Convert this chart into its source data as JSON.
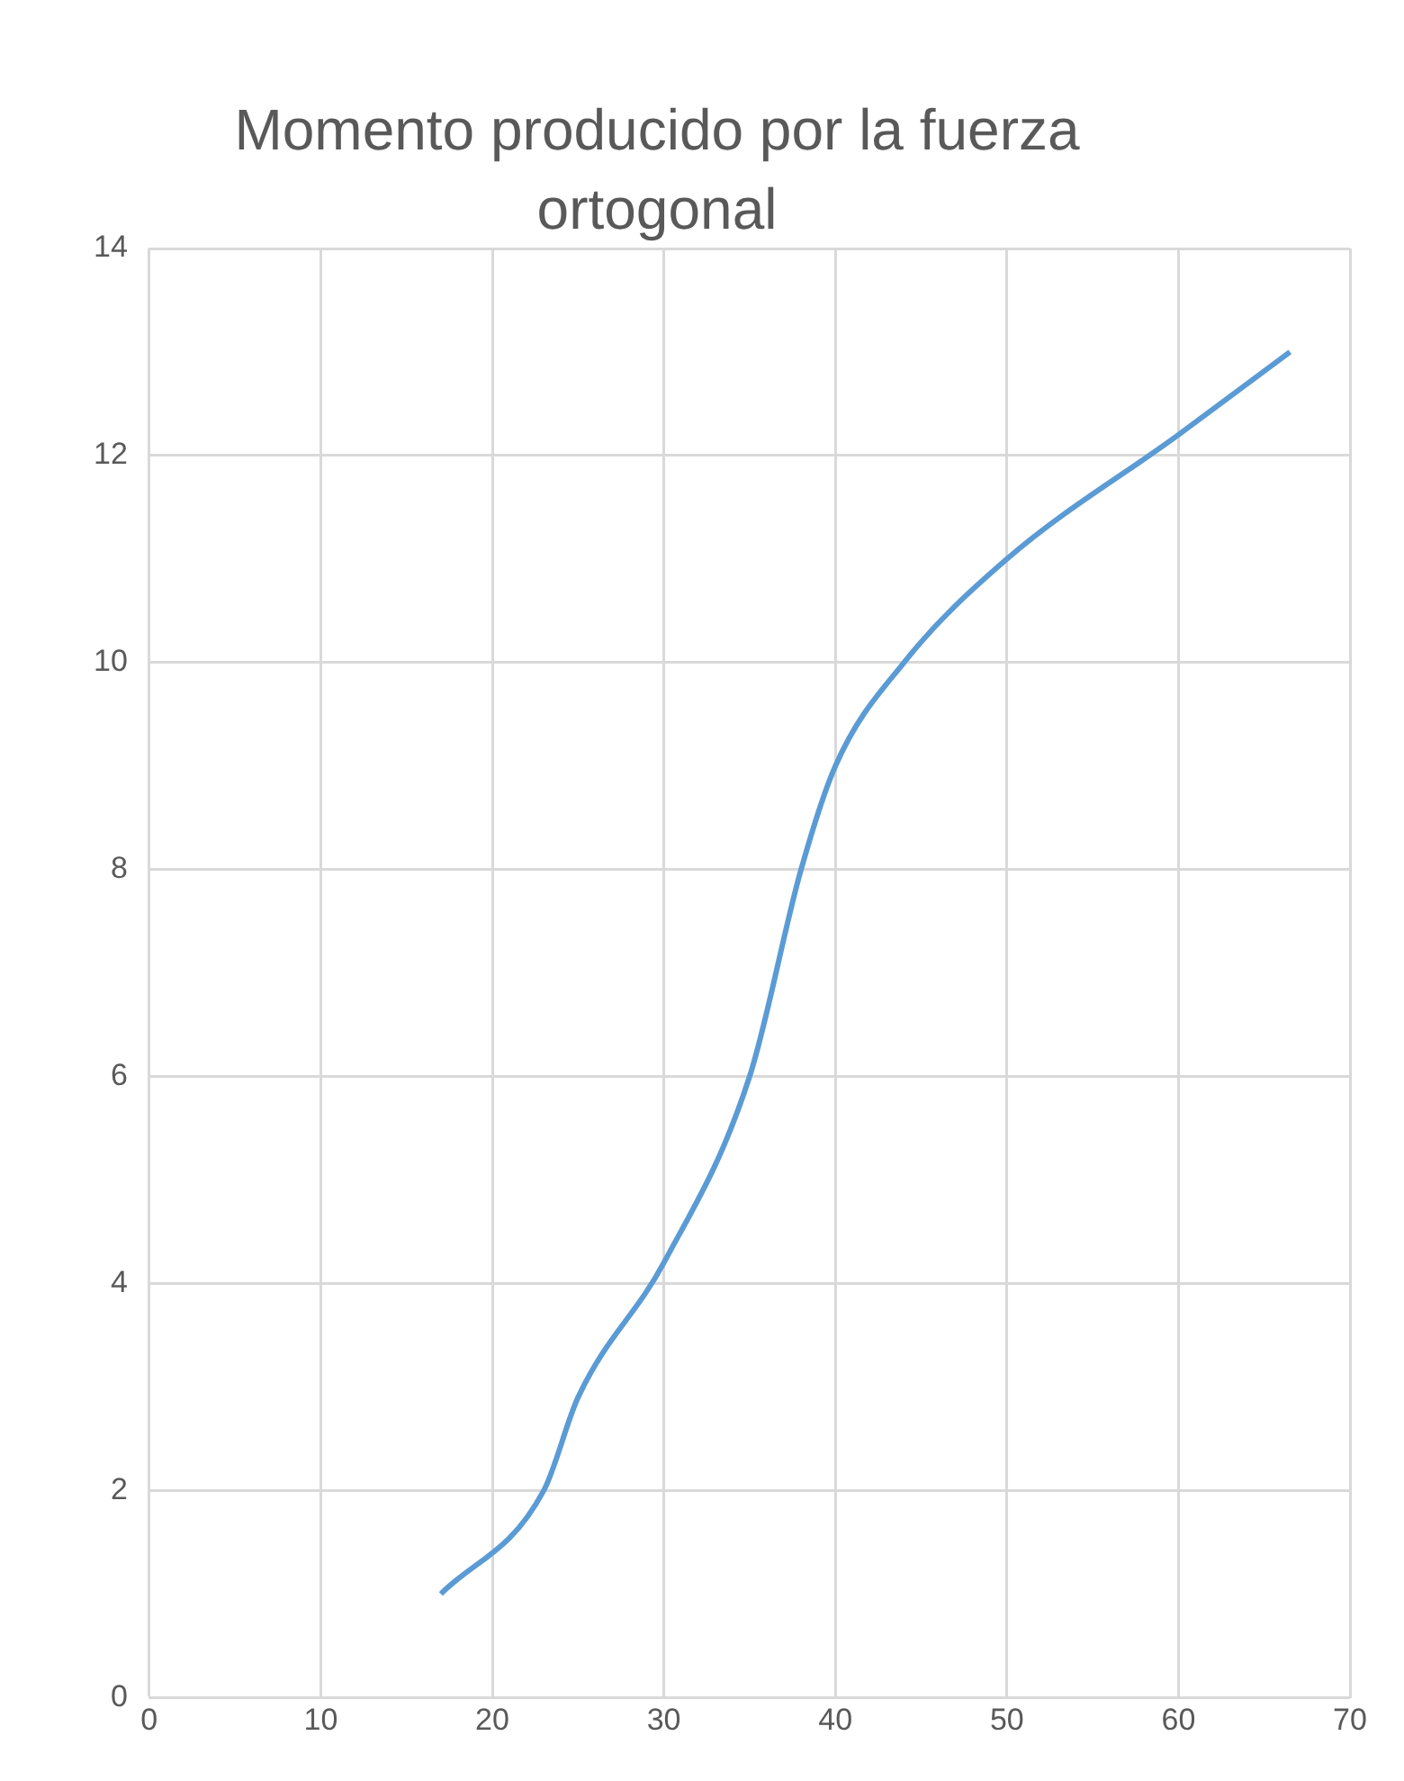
{
  "chart_data": {
    "type": "line",
    "title": "Momento producido por la fuerza ortogonal",
    "x": [
      17,
      23,
      25,
      30,
      35,
      38,
      40,
      44,
      50,
      60,
      66.5
    ],
    "series": [
      {
        "color": "#5b9bd5",
        "values": [
          1,
          2,
          2.9,
          4.2,
          6,
          8,
          9,
          10,
          11,
          12.2,
          13
        ]
      }
    ],
    "xlim": [
      0,
      70
    ],
    "xticks": [
      0,
      10,
      20,
      30,
      40,
      50,
      60,
      70
    ],
    "ylim": [
      0,
      14
    ],
    "yticks": [
      0,
      2,
      4,
      6,
      8,
      10,
      12,
      14
    ],
    "grid": true,
    "legend": false,
    "marker": "none",
    "line_style": "solid"
  }
}
